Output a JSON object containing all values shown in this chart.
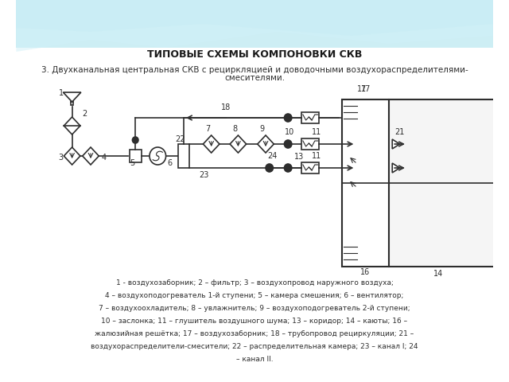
{
  "title": "ТИПОВЫЕ СХЕМЫ КОМПОНОВКИ СКВ",
  "subtitle": "3. Двухканальная центральная СКВ с рециркляцией и доводочными воздухораспределителями-\nсмесителями.",
  "description_lines": [
    "1 - воздухозаборник; 2 – фильтр; 3 – воздухопровод наружного воздуха;",
    "4 – воздухоподогреватель 1-й ступени; 5 – камера смешения; 6 – вентилятор;",
    "7 – воздухоохладитель; 8 – увлажнитель; 9 – воздухоподогреватель 2-й ступени;",
    "10 – заслонка; 11 – глушитель воздушного шума; 13 – коридор; 14 – каюты; 16 –",
    "жалюзийная решётка; 17 – воздухозаборник; 18 – трубопровод рециркуляции; 21 –",
    "воздухораспределители-смесители; 22 – распределительная камера; 23 – канал I; 24",
    "– канал II."
  ],
  "bg_color": "#ffffff",
  "diagram_color": "#2d2d2d",
  "title_color": "#1a1a1a",
  "text_color": "#2d2d2d",
  "header_bg_start": "#a8dde9",
  "header_bg_end": "#ffffff"
}
